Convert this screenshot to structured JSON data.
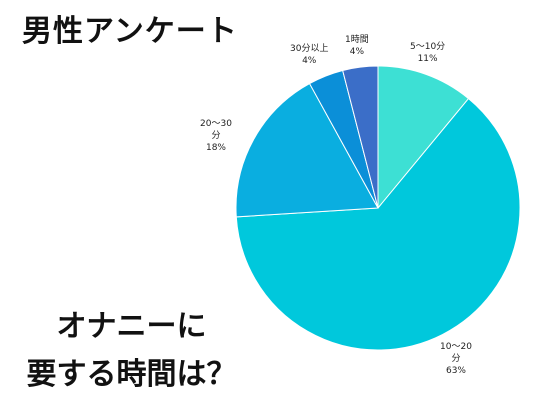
{
  "header": {
    "title": "男性アンケート"
  },
  "question": {
    "line1": "オナニーに",
    "line2": "要する時間は？"
  },
  "chart_data": {
    "type": "pie",
    "slices": [
      {
        "label": "5〜10分",
        "value": 11,
        "value_label": "11%",
        "color": "#3de0d4"
      },
      {
        "label": "10〜20分",
        "value": 63,
        "value_label": "63%",
        "color": "#00c8dc"
      },
      {
        "label": "20〜30分",
        "value": 18,
        "value_label": "18%",
        "color": "#0aaee0"
      },
      {
        "label": "30分以上",
        "value": 4,
        "value_label": "4%",
        "color": "#0b8fd8"
      },
      {
        "label": "1時間",
        "value": 4,
        "value_label": "4%",
        "color": "#3b6ec8"
      }
    ],
    "start": "12 o'clock",
    "direction": "clockwise",
    "legend": "none"
  }
}
